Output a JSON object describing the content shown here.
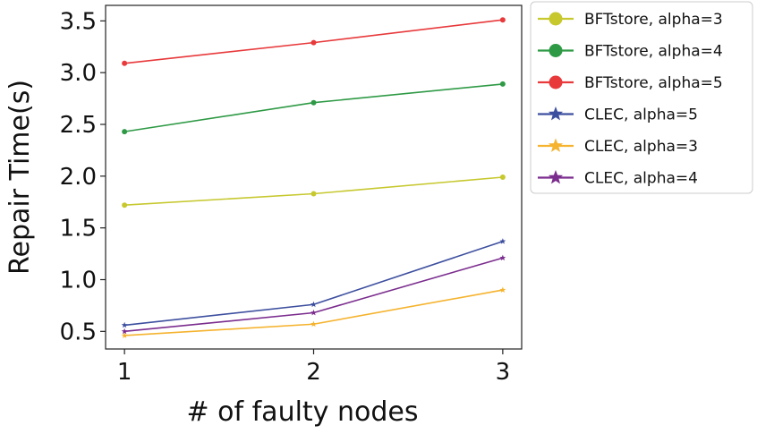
{
  "chart_data": {
    "type": "line",
    "xlabel": "# of faulty nodes",
    "ylabel": "Repair Time(s)",
    "x": [
      1,
      2,
      3
    ],
    "x_tick_labels": [
      "1",
      "2",
      "3"
    ],
    "y_ticks": [
      0.5,
      1.0,
      1.5,
      2.0,
      2.5,
      3.0,
      3.5
    ],
    "y_tick_labels": [
      "0.5",
      "1.0",
      "1.5",
      "2.0",
      "2.5",
      "3.0",
      "3.5"
    ],
    "xlim": [
      0.9,
      3.1
    ],
    "ylim": [
      0.33,
      3.65
    ],
    "grid": false,
    "legend_position": "outside-right",
    "series": [
      {
        "name": "BFTstore, alpha=3",
        "values": [
          1.72,
          1.83,
          1.99
        ],
        "color": "#c6c82e",
        "marker": "circle"
      },
      {
        "name": "BFTstore, alpha=4",
        "values": [
          2.43,
          2.71,
          2.89
        ],
        "color": "#2e9a45",
        "marker": "circle"
      },
      {
        "name": "BFTstore, alpha=5",
        "values": [
          3.09,
          3.29,
          3.51
        ],
        "color": "#e8393b",
        "marker": "circle"
      },
      {
        "name": "CLEC, alpha=5",
        "values": [
          0.56,
          0.76,
          1.37
        ],
        "color": "#3d4f9f",
        "marker": "star"
      },
      {
        "name": "CLEC, alpha=3",
        "values": [
          0.46,
          0.57,
          0.9
        ],
        "color": "#f5b32e",
        "marker": "star"
      },
      {
        "name": "CLEC, alpha=4",
        "values": [
          0.5,
          0.68,
          1.21
        ],
        "color": "#7b2d8e",
        "marker": "star"
      }
    ]
  }
}
